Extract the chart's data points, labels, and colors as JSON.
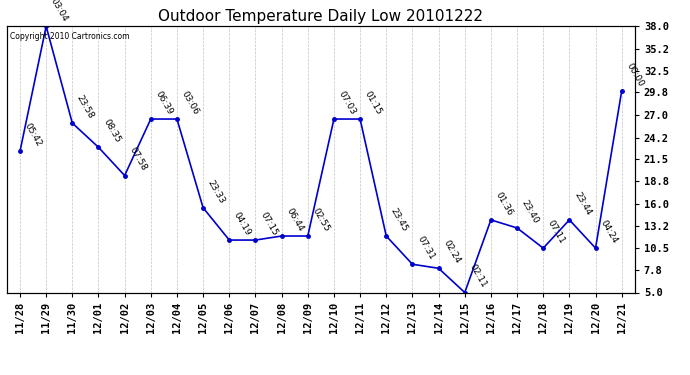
{
  "title": "Outdoor Temperature Daily Low 20101222",
  "copyright_text": "Copyright 2010 Cartronics.com",
  "x_labels": [
    "11/28",
    "11/29",
    "11/30",
    "12/01",
    "12/02",
    "12/03",
    "12/04",
    "12/05",
    "12/06",
    "12/07",
    "12/08",
    "12/09",
    "12/10",
    "12/11",
    "12/12",
    "12/13",
    "12/14",
    "12/15",
    "12/16",
    "12/17",
    "12/18",
    "12/19",
    "12/20",
    "12/21"
  ],
  "y_values": [
    22.5,
    38.0,
    26.0,
    23.0,
    19.5,
    26.5,
    26.5,
    15.5,
    11.5,
    11.5,
    12.0,
    12.0,
    26.5,
    26.5,
    12.0,
    8.5,
    8.0,
    5.0,
    14.0,
    13.0,
    10.5,
    14.0,
    10.5,
    30.0
  ],
  "time_labels": [
    "05:42",
    "03:04",
    "23:58",
    "08:35",
    "07:58",
    "06:39",
    "03:06",
    "23:33",
    "04:19",
    "07:15",
    "06:44",
    "02:55",
    "07:03",
    "01:15",
    "23:45",
    "07:31",
    "02:24",
    "02:11",
    "01:36",
    "23:40",
    "07:11",
    "23:44",
    "04:24",
    "00:00"
  ],
  "line_color": "#0000CC",
  "marker_color": "#0000CC",
  "grid_color": "#AAAAAA",
  "bg_color": "#FFFFFF",
  "y_right_ticks": [
    38.0,
    35.2,
    32.5,
    29.8,
    27.0,
    24.2,
    21.5,
    18.8,
    16.0,
    13.2,
    10.5,
    7.8,
    5.0
  ],
  "ylim": [
    5.0,
    38.0
  ],
  "title_fontsize": 11,
  "label_fontsize": 7.5,
  "annotation_fontsize": 6.5
}
